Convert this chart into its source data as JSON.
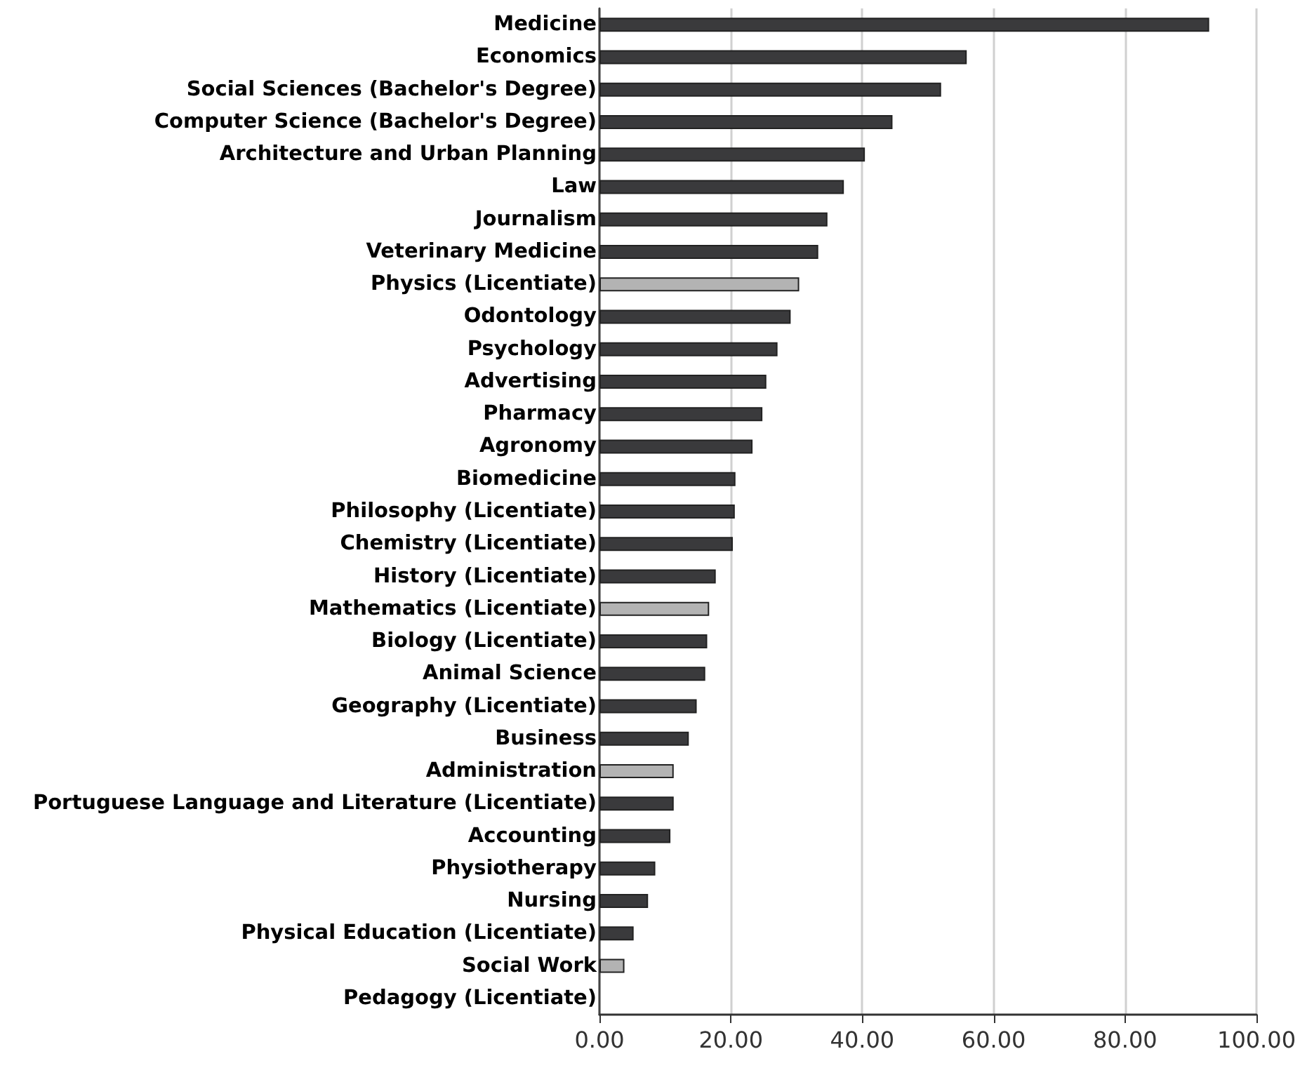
{
  "chart_data": {
    "type": "bar",
    "orientation": "horizontal",
    "categories": [
      "Medicine",
      "Economics",
      "Social Sciences (Bachelor's Degree)",
      "Computer Science (Bachelor's Degree)",
      "Architecture and Urban Planning",
      "Law",
      "Journalism",
      "Veterinary Medicine",
      "Physics (Licentiate)",
      "Odontology",
      "Psychology",
      "Advertising",
      "Pharmacy",
      "Agronomy",
      "Biomedicine",
      "Philosophy (Licentiate)",
      "Chemistry (Licentiate)",
      "History (Licentiate)",
      "Mathematics (Licentiate)",
      "Biology (Licentiate)",
      "Animal Science",
      "Geography (Licentiate)",
      "Business",
      "Administration",
      "Portuguese Language and Literature (Licentiate)",
      "Accounting",
      "Physiotherapy",
      "Nursing",
      "Physical Education (Licentiate)",
      "Social Work",
      "Pedagogy (Licentiate)"
    ],
    "values": [
      92.8,
      55.9,
      52.0,
      44.6,
      40.4,
      37.2,
      34.7,
      33.3,
      30.4,
      29.1,
      27.1,
      25.4,
      24.8,
      23.3,
      20.7,
      20.6,
      20.3,
      17.7,
      16.7,
      16.4,
      16.1,
      14.8,
      13.6,
      11.3,
      11.3,
      10.8,
      8.5,
      7.4,
      5.2,
      3.8,
      null
    ],
    "colors": [
      "#3a3a3c",
      "#3a3a3c",
      "#3a3a3c",
      "#3a3a3c",
      "#3a3a3c",
      "#3a3a3c",
      "#3a3a3c",
      "#3a3a3c",
      "#b3b3b3",
      "#3a3a3c",
      "#3a3a3c",
      "#3a3a3c",
      "#3a3a3c",
      "#3a3a3c",
      "#3a3a3c",
      "#3a3a3c",
      "#3a3a3c",
      "#3a3a3c",
      "#b3b3b3",
      "#3a3a3c",
      "#3a3a3c",
      "#3a3a3c",
      "#3a3a3c",
      "#b3b3b3",
      "#3a3a3c",
      "#3a3a3c",
      "#3a3a3c",
      "#3a3a3c",
      "#3a3a3c",
      "#b3b3b3",
      "#3a3a3c"
    ],
    "xlim": [
      0,
      100
    ],
    "xticks": [
      {
        "value": 0,
        "label": "0.00"
      },
      {
        "value": 20,
        "label": "20.00"
      },
      {
        "value": 40,
        "label": "40.00"
      },
      {
        "value": 60,
        "label": "60.00"
      },
      {
        "value": 80,
        "label": "80.00"
      },
      {
        "value": 100,
        "label": "100.00"
      }
    ],
    "grid": "x"
  }
}
